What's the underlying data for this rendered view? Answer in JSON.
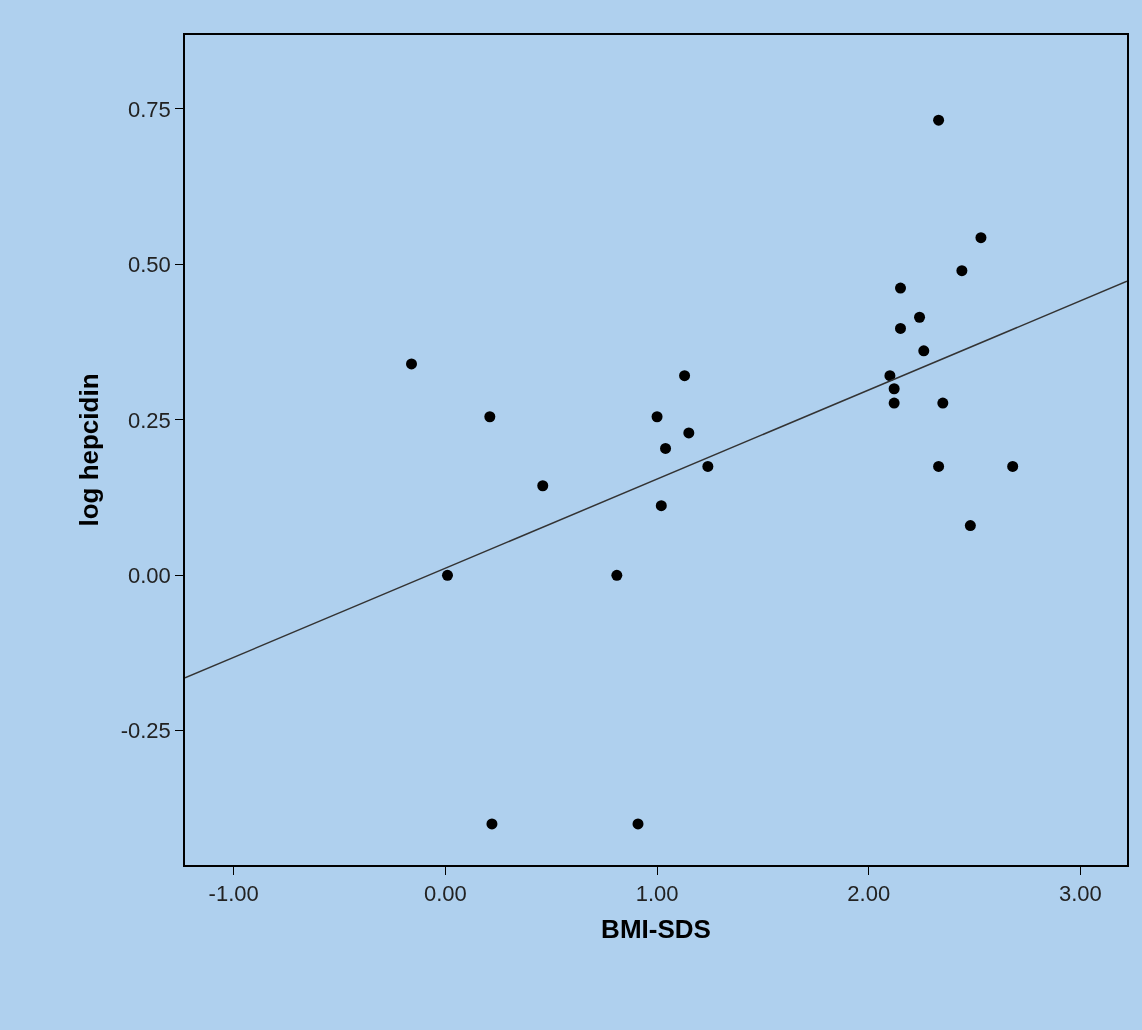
{
  "chart_data": {
    "type": "scatter",
    "xlabel": "BMI-SDS",
    "ylabel": "log hepcidin",
    "xlim": [
      -1.23,
      3.22
    ],
    "ylim": [
      -0.466,
      0.869
    ],
    "xticks": [
      {
        "value": -1,
        "label": "-1.00"
      },
      {
        "value": 0,
        "label": "0.00"
      },
      {
        "value": 1,
        "label": "1.00"
      },
      {
        "value": 2,
        "label": "2.00"
      },
      {
        "value": 3,
        "label": "3.00"
      }
    ],
    "yticks": [
      {
        "value": -0.25,
        "label": "-0.25"
      },
      {
        "value": 0,
        "label": "0.00"
      },
      {
        "value": 0.25,
        "label": "0.25"
      },
      {
        "value": 0.5,
        "label": "0.50"
      },
      {
        "value": 0.75,
        "label": "0.75"
      }
    ],
    "grid": false,
    "series": [
      {
        "color": "#000000",
        "marker": "circle",
        "x": [
          -0.16,
          0.01,
          0.21,
          0.22,
          0.46,
          0.81,
          0.91,
          1.0,
          1.02,
          1.04,
          1.13,
          1.15,
          1.24,
          2.1,
          2.12,
          2.12,
          2.15,
          2.15,
          2.24,
          2.26,
          2.33,
          2.33,
          2.35,
          2.44,
          2.48,
          2.53,
          2.68
        ],
        "values": [
          0.34,
          0.0,
          0.255,
          -0.4,
          0.144,
          0.0,
          -0.4,
          0.255,
          0.112,
          0.204,
          0.321,
          0.229,
          0.175,
          0.321,
          0.3,
          0.277,
          0.397,
          0.462,
          0.415,
          0.361,
          0.732,
          0.175,
          0.277,
          0.49,
          0.08,
          0.543,
          0.175
        ]
      },
      {
        "type": "line",
        "color": "#333333",
        "line_style": "solid",
        "x": [
          -1.23,
          3.22
        ],
        "values": [
          -0.165,
          0.473
        ]
      }
    ]
  }
}
